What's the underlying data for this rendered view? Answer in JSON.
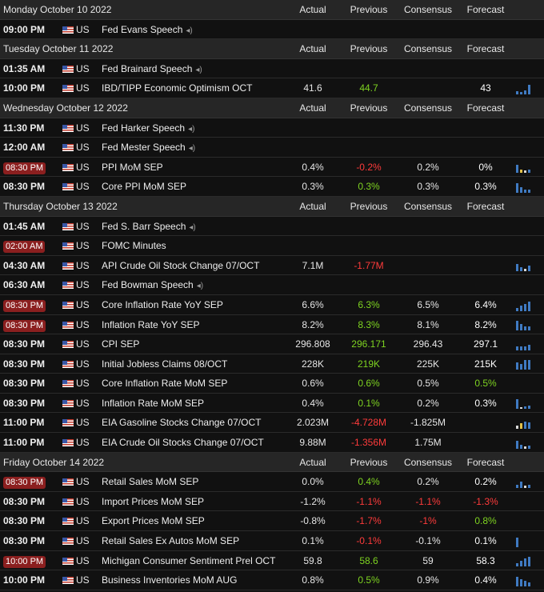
{
  "columns": {
    "actual": "Actual",
    "previous": "Previous",
    "consensus": "Consensus",
    "forecast": "Forecast"
  },
  "days": [
    {
      "title": "Monday October 10 2022",
      "events": [
        {
          "time": "09:00 PM",
          "highlight": false,
          "country": "US",
          "name": "Fed Evans Speech",
          "speech": true,
          "speaker_icon": "speaker-icon"
        }
      ]
    },
    {
      "title": "Tuesday October 11 2022",
      "events": [
        {
          "time": "01:35 AM",
          "highlight": false,
          "country": "US",
          "name": "Fed Brainard Speech",
          "speech": true,
          "speaker_icon": "speaker-icon"
        },
        {
          "time": "10:00 PM",
          "highlight": false,
          "country": "US",
          "name": "IBD/TIPP Economic Optimism OCT",
          "speech": false,
          "actual": "41.6",
          "previous": "44.7",
          "previous_color": "green",
          "consensus": "",
          "forecast": "43",
          "forecast_color": "white",
          "spark": [
            [
              0.3,
              "b"
            ],
            [
              0.25,
              "b"
            ],
            [
              0.35,
              "b"
            ],
            [
              0.9,
              "b"
            ]
          ]
        }
      ]
    },
    {
      "title": "Wednesday October 12 2022",
      "events": [
        {
          "time": "11:30 PM",
          "highlight": false,
          "country": "US",
          "name": "Fed Harker Speech",
          "speech": true,
          "speaker_icon": "speaker-icon"
        },
        {
          "time": "12:00 AM",
          "highlight": false,
          "country": "US",
          "name": "Fed Mester Speech",
          "speech": true,
          "speaker_icon": "speaker-icon"
        },
        {
          "time": "08:30 PM",
          "highlight": true,
          "country": "US",
          "name": "PPI MoM SEP",
          "speech": false,
          "actual": "0.4%",
          "previous": "-0.2%",
          "previous_color": "red",
          "consensus": "0.2%",
          "forecast": "0%",
          "forecast_color": "white",
          "spark": [
            [
              0.8,
              "b"
            ],
            [
              0.3,
              "y"
            ],
            [
              0.2,
              "w"
            ],
            [
              0.3,
              "b"
            ]
          ]
        },
        {
          "time": "08:30 PM",
          "highlight": false,
          "country": "US",
          "name": "Core PPI MoM SEP",
          "speech": false,
          "actual": "0.3%",
          "previous": "0.3%",
          "previous_color": "green",
          "consensus": "0.3%",
          "forecast": "0.3%",
          "forecast_color": "white",
          "spark": [
            [
              0.9,
              "b"
            ],
            [
              0.5,
              "b"
            ],
            [
              0.3,
              "b"
            ],
            [
              0.3,
              "b"
            ]
          ]
        }
      ]
    },
    {
      "title": "Thursday October 13 2022",
      "events": [
        {
          "time": "01:45 AM",
          "highlight": false,
          "country": "US",
          "name": "Fed S. Barr Speech",
          "speech": true,
          "speaker_icon": "speaker-icon"
        },
        {
          "time": "02:00 AM",
          "highlight": true,
          "country": "US",
          "name": "FOMC Minutes",
          "speech": false
        },
        {
          "time": "04:30 AM",
          "highlight": false,
          "country": "US",
          "name": "API Crude Oil Stock Change 07/OCT",
          "speech": false,
          "actual": "7.1M",
          "previous": "-1.77M",
          "previous_color": "red",
          "consensus": "",
          "forecast": "",
          "forecast_color": "white",
          "spark": [
            [
              0.7,
              "b"
            ],
            [
              0.4,
              "b"
            ],
            [
              0.2,
              "w"
            ],
            [
              0.5,
              "b"
            ]
          ]
        },
        {
          "time": "06:30 AM",
          "highlight": false,
          "country": "US",
          "name": "Fed Bowman Speech",
          "speech": true,
          "speaker_icon": "speaker-icon"
        },
        {
          "time": "08:30 PM",
          "highlight": true,
          "country": "US",
          "name": "Core Inflation Rate YoY SEP",
          "speech": false,
          "actual": "6.6%",
          "previous": "6.3%",
          "previous_color": "green",
          "consensus": "6.5%",
          "forecast": "6.4%",
          "forecast_color": "white",
          "spark": [
            [
              0.3,
              "b"
            ],
            [
              0.5,
              "b"
            ],
            [
              0.7,
              "b"
            ],
            [
              0.95,
              "b"
            ]
          ]
        },
        {
          "time": "08:30 PM",
          "highlight": true,
          "country": "US",
          "name": "Inflation Rate YoY SEP",
          "speech": false,
          "actual": "8.2%",
          "previous": "8.3%",
          "previous_color": "green",
          "consensus": "8.1%",
          "forecast": "8.2%",
          "forecast_color": "white",
          "spark": [
            [
              0.9,
              "b"
            ],
            [
              0.6,
              "b"
            ],
            [
              0.4,
              "b"
            ],
            [
              0.4,
              "b"
            ]
          ]
        },
        {
          "time": "08:30 PM",
          "highlight": false,
          "country": "US",
          "name": "CPI SEP",
          "speech": false,
          "actual": "296.808",
          "previous": "296.171",
          "previous_color": "green",
          "consensus": "296.43",
          "forecast": "297.1",
          "forecast_color": "white",
          "spark": [
            [
              0.4,
              "b"
            ],
            [
              0.4,
              "b"
            ],
            [
              0.4,
              "b"
            ],
            [
              0.5,
              "b"
            ]
          ]
        },
        {
          "time": "08:30 PM",
          "highlight": false,
          "country": "US",
          "name": "Initial Jobless Claims 08/OCT",
          "speech": false,
          "actual": "228K",
          "previous": "219K",
          "previous_color": "green",
          "consensus": "225K",
          "forecast": "215K",
          "forecast_color": "white",
          "spark": [
            [
              0.7,
              "b"
            ],
            [
              0.5,
              "b"
            ],
            [
              0.9,
              "b"
            ],
            [
              0.95,
              "b"
            ]
          ]
        },
        {
          "time": "08:30 PM",
          "highlight": false,
          "country": "US",
          "name": "Core Inflation Rate MoM SEP",
          "speech": false,
          "actual": "0.6%",
          "previous": "0.6%",
          "previous_color": "green",
          "consensus": "0.5%",
          "forecast": "0.5%",
          "forecast_color": "green",
          "spark": []
        },
        {
          "time": "08:30 PM",
          "highlight": false,
          "country": "US",
          "name": "Inflation Rate MoM SEP",
          "speech": false,
          "actual": "0.4%",
          "previous": "0.1%",
          "previous_color": "green",
          "consensus": "0.2%",
          "forecast": "0.3%",
          "forecast_color": "white",
          "spark": [
            [
              0.9,
              "b"
            ],
            [
              0.15,
              "w"
            ],
            [
              0.2,
              "b"
            ],
            [
              0.3,
              "b"
            ]
          ]
        },
        {
          "time": "11:00 PM",
          "highlight": false,
          "country": "US",
          "name": "EIA Gasoline Stocks Change 07/OCT",
          "speech": false,
          "actual": "2.023M",
          "previous": "-4.728M",
          "previous_color": "red",
          "consensus": "-1.825M",
          "forecast": "",
          "forecast_color": "white",
          "spark": [
            [
              0.3,
              "w"
            ],
            [
              0.5,
              "y"
            ],
            [
              0.7,
              "b"
            ],
            [
              0.6,
              "b"
            ]
          ]
        },
        {
          "time": "11:00 PM",
          "highlight": false,
          "country": "US",
          "name": "EIA Crude Oil Stocks Change 07/OCT",
          "speech": false,
          "actual": "9.88M",
          "previous": "-1.356M",
          "previous_color": "red",
          "consensus": "1.75M",
          "forecast": "",
          "forecast_color": "white",
          "spark": [
            [
              0.8,
              "b"
            ],
            [
              0.4,
              "b"
            ],
            [
              0.2,
              "w"
            ],
            [
              0.3,
              "b"
            ]
          ]
        }
      ]
    },
    {
      "title": "Friday October 14 2022",
      "events": [
        {
          "time": "08:30 PM",
          "highlight": true,
          "country": "US",
          "name": "Retail Sales MoM SEP",
          "speech": false,
          "actual": "0.0%",
          "previous": "0.4%",
          "previous_color": "green",
          "consensus": "0.2%",
          "forecast": "0.2%",
          "forecast_color": "white",
          "spark": [
            [
              0.3,
              "b"
            ],
            [
              0.6,
              "b"
            ],
            [
              0.2,
              "w"
            ],
            [
              0.3,
              "b"
            ]
          ]
        },
        {
          "time": "08:30 PM",
          "highlight": false,
          "country": "US",
          "name": "Import Prices MoM SEP",
          "speech": false,
          "actual": "-1.2%",
          "previous": "-1.1%",
          "previous_color": "red",
          "consensus": "-1.1%",
          "consensus_color": "red",
          "forecast": "-1.3%",
          "forecast_color": "red",
          "spark": []
        },
        {
          "time": "08:30 PM",
          "highlight": false,
          "country": "US",
          "name": "Export Prices MoM SEP",
          "speech": false,
          "actual": "-0.8%",
          "previous": "-1.7%",
          "previous_color": "red",
          "consensus": "-1%",
          "consensus_color": "red",
          "forecast": "0.8%",
          "forecast_color": "green",
          "spark": []
        },
        {
          "time": "08:30 PM",
          "highlight": false,
          "country": "US",
          "name": "Retail Sales Ex Autos MoM SEP",
          "speech": false,
          "actual": "0.1%",
          "previous": "-0.1%",
          "previous_color": "red",
          "consensus": "-0.1%",
          "forecast": "0.1%",
          "forecast_color": "white",
          "spark": [
            [
              0.9,
              "b"
            ]
          ]
        },
        {
          "time": "10:00 PM",
          "highlight": true,
          "country": "US",
          "name": "Michigan Consumer Sentiment Prel OCT",
          "speech": false,
          "actual": "59.8",
          "previous": "58.6",
          "previous_color": "green",
          "consensus": "59",
          "forecast": "58.3",
          "forecast_color": "white",
          "spark": [
            [
              0.3,
              "b"
            ],
            [
              0.5,
              "b"
            ],
            [
              0.8,
              "b"
            ],
            [
              0.9,
              "b"
            ]
          ]
        },
        {
          "time": "10:00 PM",
          "highlight": false,
          "country": "US",
          "name": "Business Inventories MoM AUG",
          "speech": false,
          "actual": "0.8%",
          "previous": "0.5%",
          "previous_color": "green",
          "consensus": "0.9%",
          "forecast": "0.4%",
          "forecast_color": "white",
          "spark": [
            [
              0.9,
              "b"
            ],
            [
              0.7,
              "b"
            ],
            [
              0.5,
              "b"
            ],
            [
              0.4,
              "b"
            ]
          ]
        }
      ]
    }
  ],
  "colors": {
    "green": "#7ed321",
    "red": "#ff3b3b",
    "highlight": "#8b1f1f"
  }
}
